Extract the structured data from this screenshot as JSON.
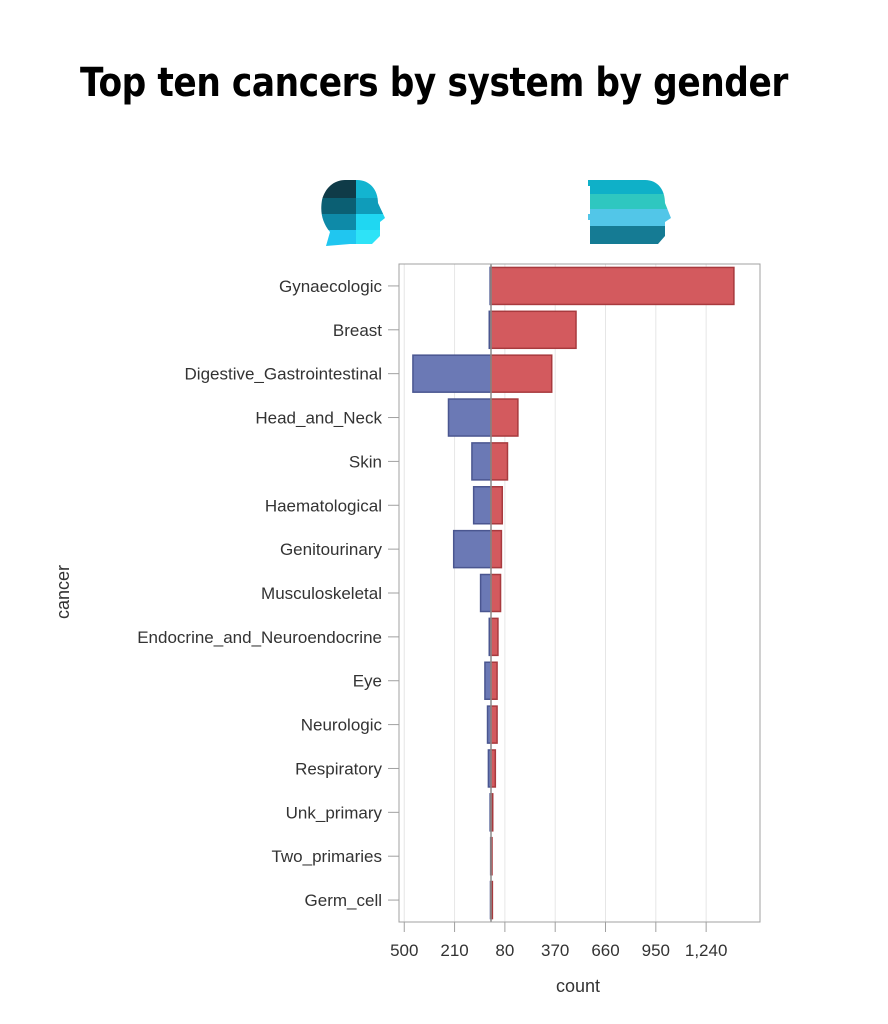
{
  "title": "Top ten cancers by system by gender",
  "colors": {
    "female_fill": "#d35a5e",
    "female_stroke": "#a83a3e",
    "male_fill": "#6b79b5",
    "male_stroke": "#4a5690",
    "grid": "#e6e6e6",
    "frame": "#a0a0a0",
    "zero_line": "#8a8a8a",
    "text": "#333333"
  },
  "icons": {
    "male": "male-head-profile-icon",
    "female": "female-head-profile-icon"
  },
  "chart_data": {
    "type": "bar",
    "orientation": "horizontal",
    "layout": "butterfly",
    "xlabel": "count",
    "ylabel": "cancer",
    "grid": true,
    "xlim": [
      -530,
      1460
    ],
    "x_ticks": [
      -500,
      -210,
      80,
      370,
      660,
      950,
      1240
    ],
    "x_tick_labels": [
      "500",
      "210",
      "80",
      "370",
      "660",
      "950",
      "1,240"
    ],
    "categories": [
      "Gynaecologic",
      "Breast",
      "Digestive_Gastrointestinal",
      "Head_and_Neck",
      "Skin",
      "Haematological",
      "Genitourinary",
      "Musculoskeletal",
      "Endocrine_and_Neuroendocrine",
      "Eye",
      "Neurologic",
      "Respiratory",
      "Unk_primary",
      "Two_primaries",
      "Germ_cell"
    ],
    "series": [
      {
        "key": "male",
        "values": [
          -5,
          -10,
          -450,
          -245,
          -110,
          -100,
          -215,
          -60,
          -10,
          -35,
          -20,
          -15,
          -5,
          -2,
          -3
        ]
      },
      {
        "key": "female",
        "values": [
          1400,
          490,
          350,
          155,
          95,
          65,
          60,
          55,
          40,
          35,
          35,
          25,
          10,
          5,
          8
        ]
      }
    ]
  }
}
